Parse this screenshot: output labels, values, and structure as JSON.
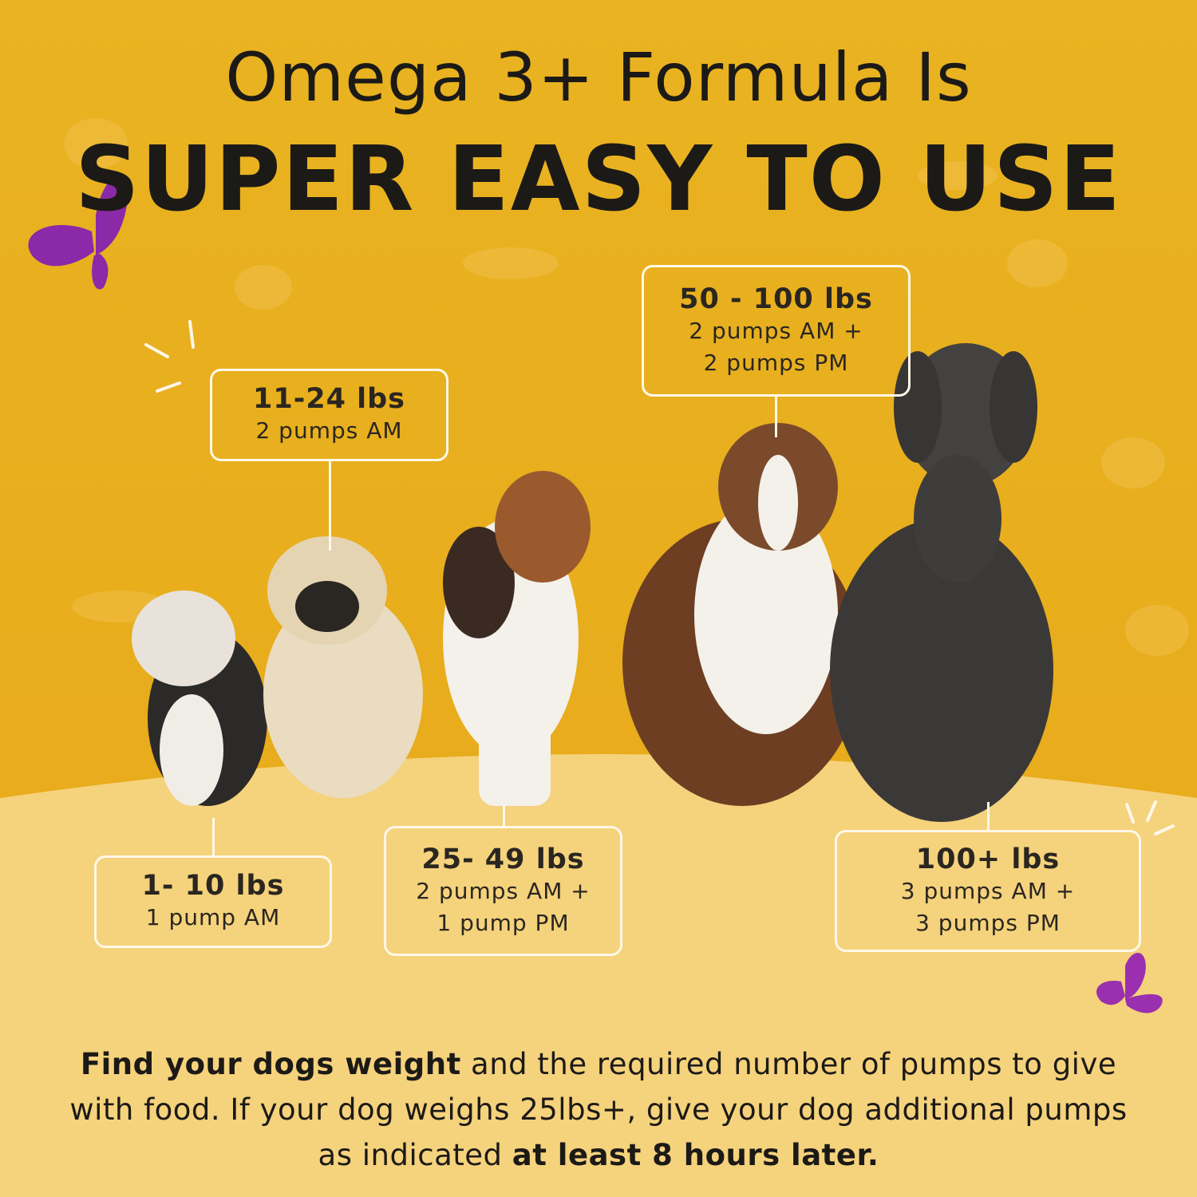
{
  "header": {
    "line1": "Omega 3+ Formula Is",
    "line2": "SUPER EASY TO USE"
  },
  "doses": [
    {
      "weight": "1- 10 lbs",
      "lines": [
        "1 pump AM"
      ]
    },
    {
      "weight": "11-24 lbs",
      "lines": [
        "2 pumps AM"
      ]
    },
    {
      "weight": "25- 49 lbs",
      "lines": [
        "2 pumps AM +",
        "1 pump PM"
      ]
    },
    {
      "weight": "50 - 100 lbs",
      "lines": [
        "2 pumps AM +",
        "2 pumps PM"
      ]
    },
    {
      "weight": "100+ lbs",
      "lines": [
        "3 pumps AM +",
        "3 pumps PM"
      ]
    }
  ],
  "footer": {
    "segments": [
      {
        "text": "Find your dogs weight",
        "bold": true
      },
      {
        "text": " and the required number of pumps to give with food. If your dog weighs 25lbs+, give your dog additional pumps as indicated ",
        "bold": false
      },
      {
        "text": "at least 8 hours later.",
        "bold": true
      }
    ]
  }
}
